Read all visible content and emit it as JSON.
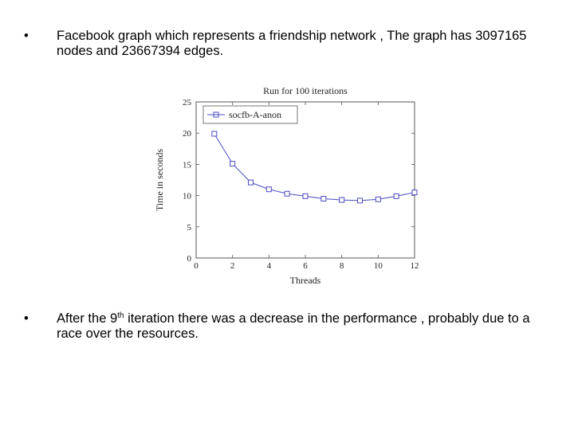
{
  "bullets": {
    "symbol": "•",
    "first": "Facebook graph which represents a friendship network , The graph has 3097165 nodes and 23667394 edges.",
    "second_before_sup": "After the 9",
    "second_sup": "th",
    "second_after_sup": " iteration there was a decrease in the performance , probably due to a race over the resources."
  },
  "chart_data": {
    "type": "line",
    "title": "Run for 100 iterations",
    "xlabel": "Threads",
    "ylabel": "Time in seconds",
    "xlim": [
      0,
      12
    ],
    "ylim": [
      0,
      25
    ],
    "xticks": [
      0,
      2,
      4,
      6,
      8,
      10,
      12
    ],
    "yticks": [
      0,
      5,
      10,
      15,
      20,
      25
    ],
    "grid": false,
    "legend_position": "top-left",
    "series": [
      {
        "name": "socfb-A-anon",
        "color": "#4b4bc4",
        "marker": "square",
        "x": [
          1,
          2,
          3,
          4,
          5,
          6,
          7,
          8,
          9,
          10,
          11,
          12
        ],
        "y": [
          19.9,
          15.1,
          12.1,
          11.0,
          10.3,
          9.9,
          9.5,
          9.3,
          9.2,
          9.4,
          9.9,
          10.5
        ]
      }
    ]
  }
}
